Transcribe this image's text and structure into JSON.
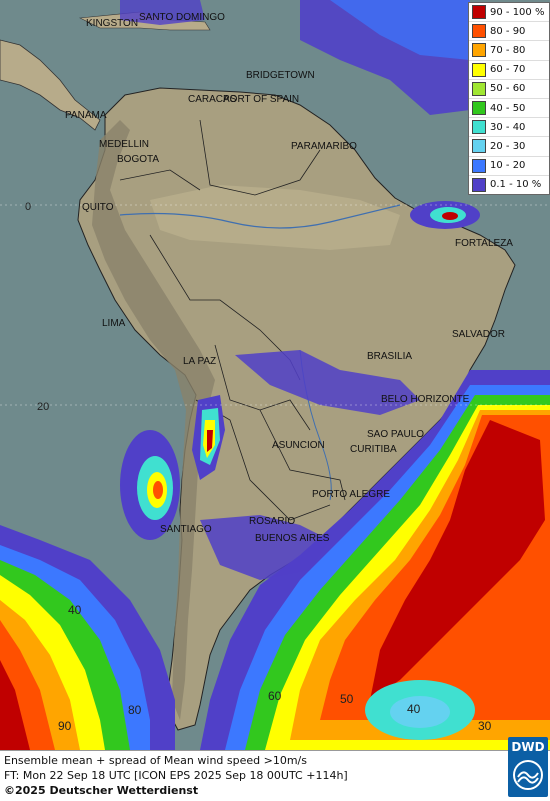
{
  "map": {
    "cities": [
      {
        "id": "kingston",
        "name": "KINGSTON"
      },
      {
        "id": "santo-domingo",
        "name": "SANTO DOMINGO"
      },
      {
        "id": "bridgetown",
        "name": "BRIDGETOWN"
      },
      {
        "id": "caracas",
        "name": "CARACAS"
      },
      {
        "id": "port-of-spain",
        "name": "PORT OF SPAIN"
      },
      {
        "id": "panama",
        "name": "PANAMA"
      },
      {
        "id": "medellin",
        "name": "MEDELLIN"
      },
      {
        "id": "bogota",
        "name": "BOGOTA"
      },
      {
        "id": "paramaribo",
        "name": "PARAMARIBO"
      },
      {
        "id": "quito",
        "name": "QUITO"
      },
      {
        "id": "fortaleza",
        "name": "FORTALEZA"
      },
      {
        "id": "lima",
        "name": "LIMA"
      },
      {
        "id": "salvador",
        "name": "SALVADOR"
      },
      {
        "id": "brasilia",
        "name": "BRASILIA"
      },
      {
        "id": "la-paz",
        "name": "LA PAZ"
      },
      {
        "id": "belo-horizonte",
        "name": "BELO HORIZONTE"
      },
      {
        "id": "sao-paulo",
        "name": "SAO PAULO"
      },
      {
        "id": "asuncion",
        "name": "ASUNCION"
      },
      {
        "id": "curitiba",
        "name": "CURITIBA"
      },
      {
        "id": "porto-alegre",
        "name": "PORTO ALEGRE"
      },
      {
        "id": "rosario",
        "name": "ROSARIO"
      },
      {
        "id": "santiago",
        "name": "SANTIAGO"
      },
      {
        "id": "buenos-aires",
        "name": "BUENOS AIRES"
      }
    ],
    "latitude_labels": [
      "0",
      "20"
    ],
    "contour_labels": [
      "40",
      "60",
      "50",
      "40",
      "30",
      "80",
      "90"
    ]
  },
  "legend": {
    "title": "",
    "classes": [
      {
        "label": "90 - 100 %",
        "color": "#c00000"
      },
      {
        "label": "80 - 90",
        "color": "#ff5000"
      },
      {
        "label": "70 - 80",
        "color": "#ffa500"
      },
      {
        "label": "60 - 70",
        "color": "#ffff00"
      },
      {
        "label": "50 - 60",
        "color": "#a0e632"
      },
      {
        "label": "40 - 50",
        "color": "#32c81e"
      },
      {
        "label": "30 - 40",
        "color": "#40e0d0"
      },
      {
        "label": "20 - 30",
        "color": "#64d2f0"
      },
      {
        "label": "10 - 20",
        "color": "#3c78ff"
      },
      {
        "label": "0.1 - 10 %",
        "color": "#5040c8"
      }
    ]
  },
  "footer": {
    "line1": "Ensemble mean + spread of Mean wind speed >10m/s",
    "line2": "FT: Mon 22 Sep 18 UTC [ICON EPS 2025 Sep 18 00UTC +114h]",
    "line3": "©2025 Deutscher Wetterdienst"
  },
  "logo": {
    "text": "DWD"
  }
}
